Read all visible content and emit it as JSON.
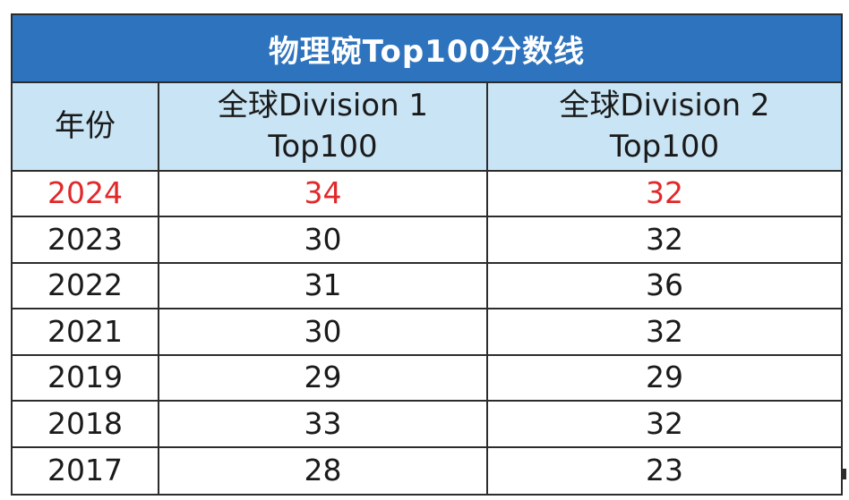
{
  "title": "物理碗Top100分数线",
  "headers": {
    "year": "年份",
    "div1_line1": "全球Division 1",
    "div1_line2": "Top100",
    "div2_line1": "全球Division 2",
    "div2_line2": "Top100"
  },
  "rows": [
    {
      "year": "2024",
      "div1": "34",
      "div2": "32",
      "highlight": true
    },
    {
      "year": "2023",
      "div1": "30",
      "div2": "32",
      "highlight": false
    },
    {
      "year": "2022",
      "div1": "31",
      "div2": "36",
      "highlight": false
    },
    {
      "year": "2021",
      "div1": "30",
      "div2": "32",
      "highlight": false
    },
    {
      "year": "2019",
      "div1": "29",
      "div2": "29",
      "highlight": false
    },
    {
      "year": "2018",
      "div1": "33",
      "div2": "32",
      "highlight": false
    },
    {
      "year": "2017",
      "div1": "28",
      "div2": "23",
      "highlight": false
    }
  ],
  "colors": {
    "title_bg": "#2e73bd",
    "header_bg": "#c9e4f4",
    "highlight_text": "#e0292b",
    "border": "#2c2c2c"
  }
}
